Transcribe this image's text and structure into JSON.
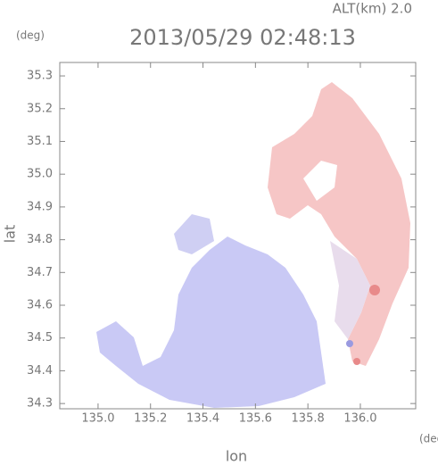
{
  "chart_data": {
    "type": "map",
    "title": "2013/05/29 02:48:13",
    "annotation": "ALT(km)  2.0",
    "x_label": "lon",
    "y_label": "lat",
    "x_unit": "(deg)",
    "y_unit": "(deg)",
    "xlim": [
      134.854,
      136.211
    ],
    "ylim": [
      34.284,
      35.341
    ],
    "xticks": [
      {
        "value": 135,
        "label": "135.0"
      },
      135.2,
      135.4,
      135.6,
      135.8,
      {
        "value": 136,
        "label": "136.0"
      }
    ],
    "yticks": [
      34.3,
      34.4,
      34.5,
      34.6,
      34.7,
      34.8,
      34.9,
      {
        "value": 35,
        "label": "35.0"
      },
      35.1,
      35.2,
      35.3
    ]
  }
}
